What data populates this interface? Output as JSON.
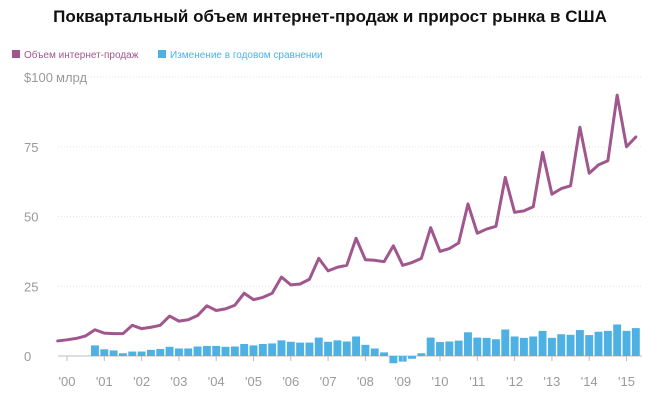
{
  "chart_data": {
    "type": "bar",
    "title": "Поквартальный объем интернет-продаж и прирост рынка в США",
    "xlabel": "",
    "ylabel": "",
    "unit_label": "млрд",
    "ylim": [
      -3,
      100
    ],
    "y_ticks": [
      {
        "value": 0,
        "label": "0"
      },
      {
        "value": 25,
        "label": "25"
      },
      {
        "value": 50,
        "label": "50"
      },
      {
        "value": 75,
        "label": "75"
      },
      {
        "value": 100,
        "label": "$100"
      }
    ],
    "x_ticks": [
      {
        "year": 2000,
        "label": "'00"
      },
      {
        "year": 2001,
        "label": "'01"
      },
      {
        "year": 2002,
        "label": "'02"
      },
      {
        "year": 2003,
        "label": "'03"
      },
      {
        "year": 2004,
        "label": "'04"
      },
      {
        "year": 2005,
        "label": "'05"
      },
      {
        "year": 2006,
        "label": "'06"
      },
      {
        "year": 2007,
        "label": "'07"
      },
      {
        "year": 2008,
        "label": "'08"
      },
      {
        "year": 2009,
        "label": "'09"
      },
      {
        "year": 2010,
        "label": "'10"
      },
      {
        "year": 2011,
        "label": "'11"
      },
      {
        "year": 2012,
        "label": "'12"
      },
      {
        "year": 2013,
        "label": "'13"
      },
      {
        "year": 2014,
        "label": "'14"
      },
      {
        "year": 2015,
        "label": "'15"
      }
    ],
    "series": [
      {
        "name": "Объем интернет-продаж",
        "kind": "line",
        "color": "#a0578e",
        "start_year": 1999.75,
        "values": [
          5.4,
          5.8,
          6.3,
          7.2,
          9.4,
          8.2,
          8.0,
          8.0,
          11.0,
          9.8,
          10.3,
          11.0,
          14.3,
          12.5,
          13.0,
          14.5,
          18.0,
          16.3,
          16.9,
          18.2,
          22.5,
          20.2,
          21.0,
          22.5,
          28.3,
          25.5,
          25.8,
          27.5,
          35.0,
          30.5,
          31.8,
          32.5,
          42.2,
          34.5,
          34.3,
          33.8,
          39.5,
          32.5,
          33.5,
          35.0,
          46.0,
          37.5,
          38.5,
          40.5,
          54.5,
          44.0,
          45.5,
          46.5,
          64.0,
          51.5,
          52.0,
          53.5,
          73.0,
          58.0,
          60.0,
          61.0,
          82.0,
          65.5,
          68.5,
          70.0,
          93.5,
          75.0,
          78.5
        ]
      },
      {
        "name": "Изменение в годовом сравнении",
        "kind": "bar",
        "color": "#4eb1e3",
        "start_year": 2000.75,
        "values": [
          3.8,
          2.4,
          2.0,
          1.0,
          1.6,
          1.6,
          2.2,
          2.5,
          3.3,
          2.7,
          2.7,
          3.4,
          3.6,
          3.6,
          3.3,
          3.4,
          4.3,
          3.8,
          4.3,
          4.5,
          5.6,
          5.1,
          4.8,
          4.8,
          6.6,
          5.1,
          5.6,
          5.2,
          7.0,
          4.0,
          2.7,
          1.3,
          -2.6,
          -2.0,
          -1.0,
          1.0,
          6.6,
          5.0,
          5.2,
          5.5,
          8.5,
          6.6,
          6.5,
          6.0,
          9.5,
          7.0,
          6.5,
          7.0,
          9.0,
          6.5,
          7.8,
          7.6,
          9.3,
          7.5,
          8.7,
          9.0,
          11.3,
          9.0,
          10.0
        ]
      }
    ],
    "grid": true,
    "legend_position": "top-left"
  }
}
